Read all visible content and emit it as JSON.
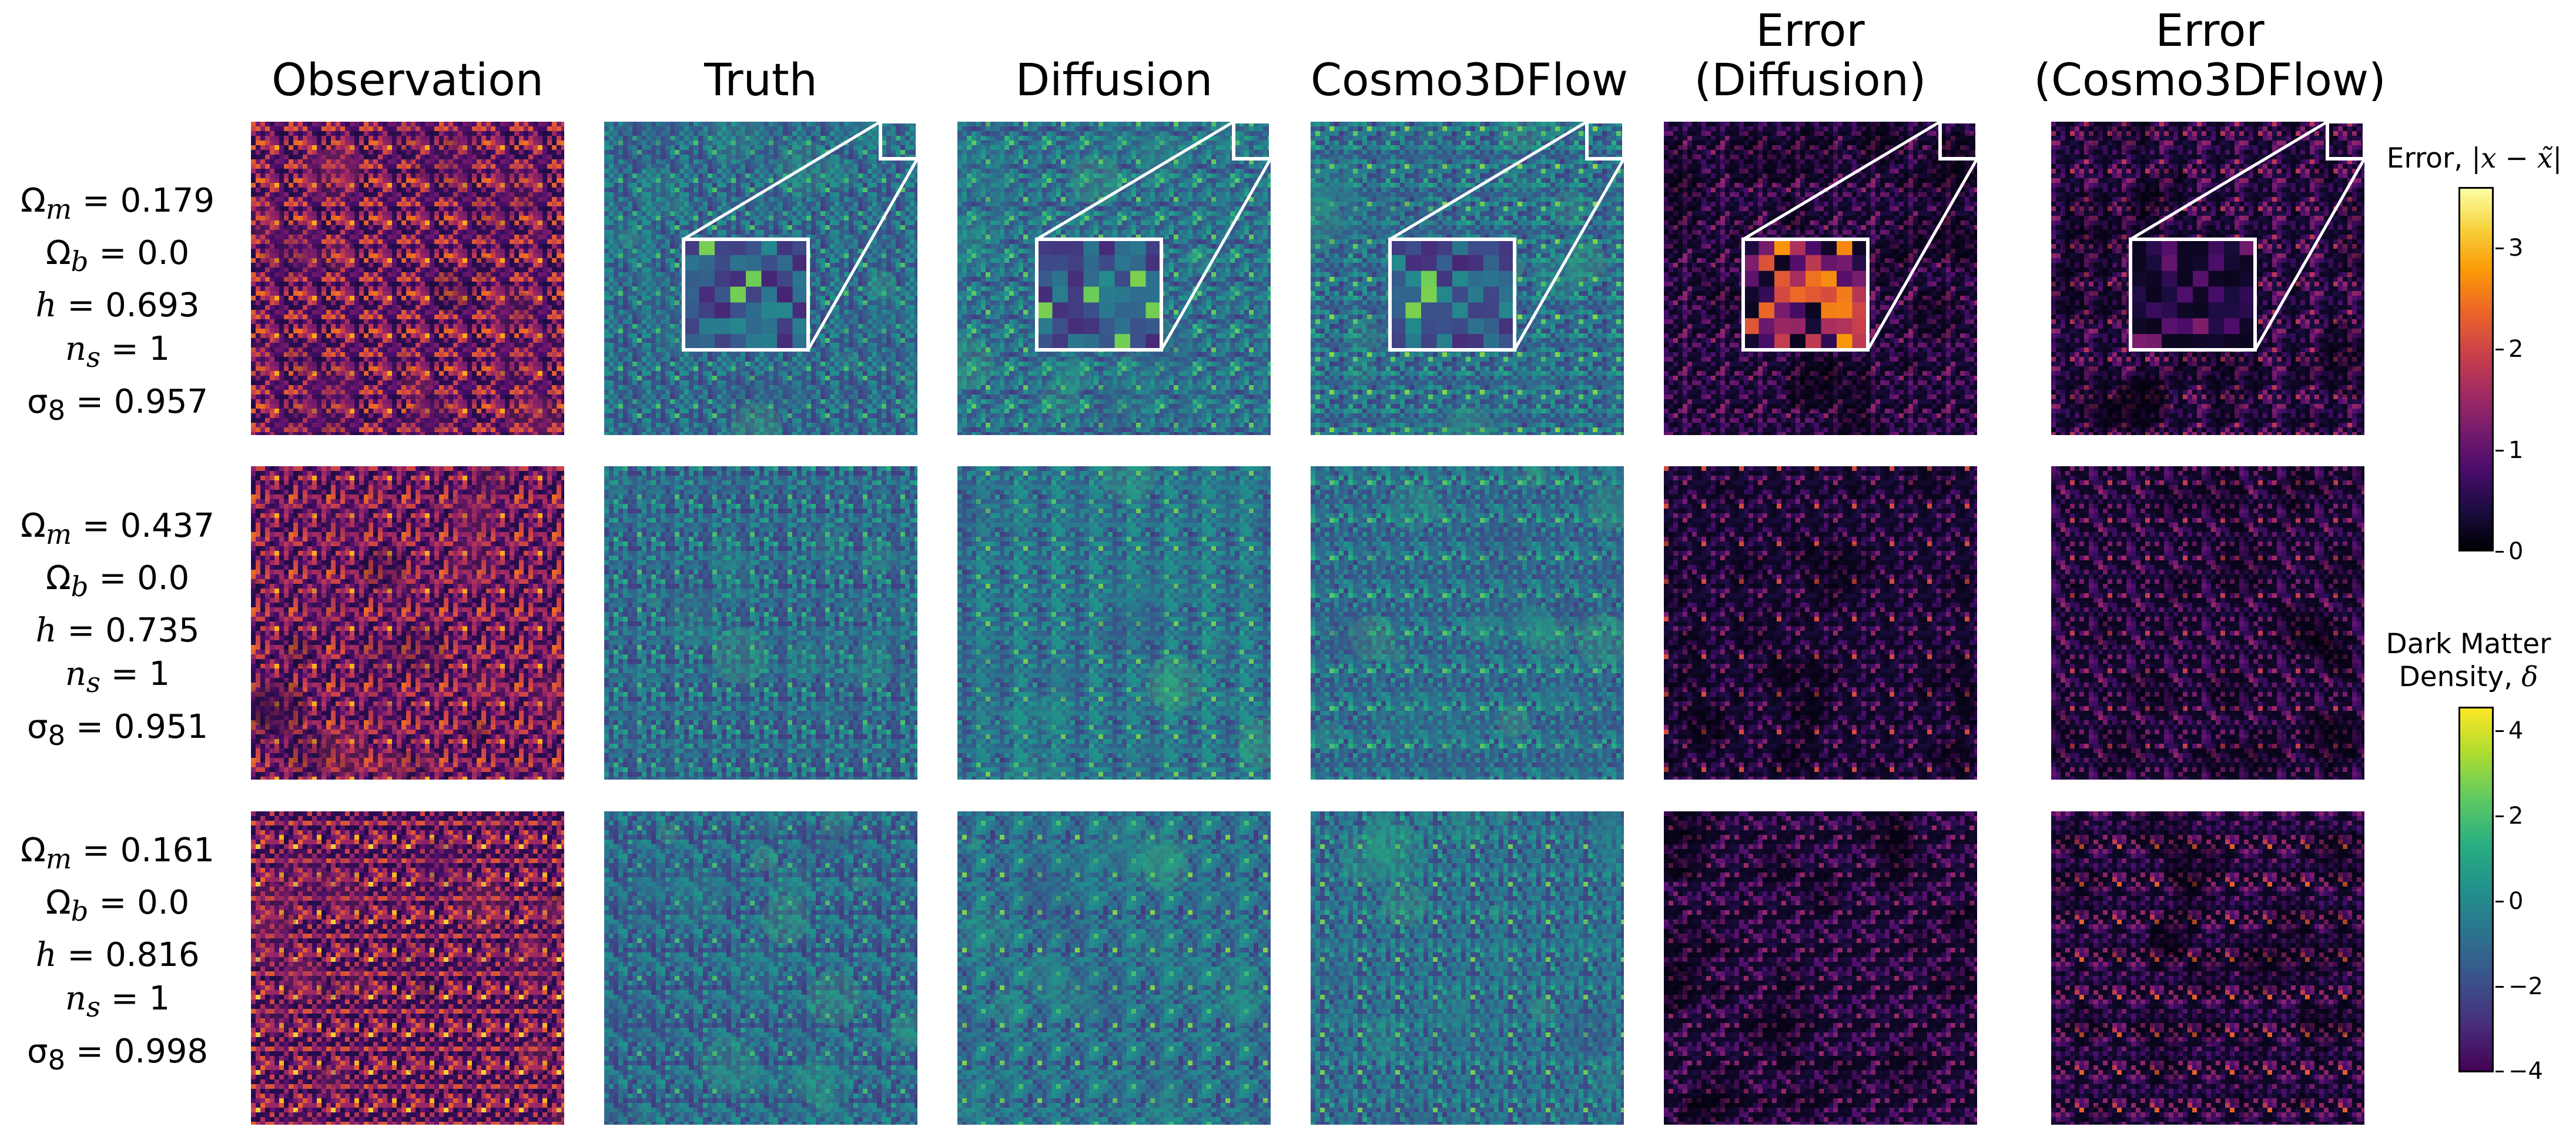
{
  "column_titles": [
    "Observation",
    "Truth",
    "Diffusion",
    "Cosmo3DFlow",
    "Error\n(Diffusion)",
    "Error\n(Cosmo3DFlow)"
  ],
  "rows": [
    {
      "omega_m": "0.179",
      "omega_b": "0.0",
      "h": "0.693",
      "n_s": "1",
      "sigma_8": "0.957"
    },
    {
      "omega_m": "0.437",
      "omega_b": "0.0",
      "h": "0.735",
      "n_s": "1",
      "sigma_8": "0.951"
    },
    {
      "omega_m": "0.161",
      "omega_b": "0.0",
      "h": "0.816",
      "n_s": "1",
      "sigma_8": "0.998"
    }
  ],
  "colorbars": {
    "error": {
      "title_text": "Error, ",
      "title_math": "|x − x̃|",
      "colormap": "inferno",
      "range": [
        0,
        3.6
      ],
      "ticks": [
        "0",
        "1",
        "2",
        "3"
      ]
    },
    "density": {
      "title_line1": "Dark Matter",
      "title_line2_text": "Density, ",
      "title_line2_math": "δ",
      "colormap": "viridis",
      "range": [
        -4,
        4.6
      ],
      "ticks": [
        "−4",
        "−2",
        "0",
        "2",
        "4"
      ]
    }
  },
  "colors": {
    "inferno": [
      "#000004",
      "#1b0c41",
      "#4a0c6b",
      "#781c6d",
      "#a52c60",
      "#cf4446",
      "#ed6925",
      "#fb9b06",
      "#f7d13d",
      "#fcffa4"
    ],
    "viridis": [
      "#440154",
      "#472d7b",
      "#3b528b",
      "#2c728e",
      "#21918c",
      "#28ae80",
      "#5ec962",
      "#addc30",
      "#fde725"
    ],
    "zoom_outline": "#ffffff"
  }
}
